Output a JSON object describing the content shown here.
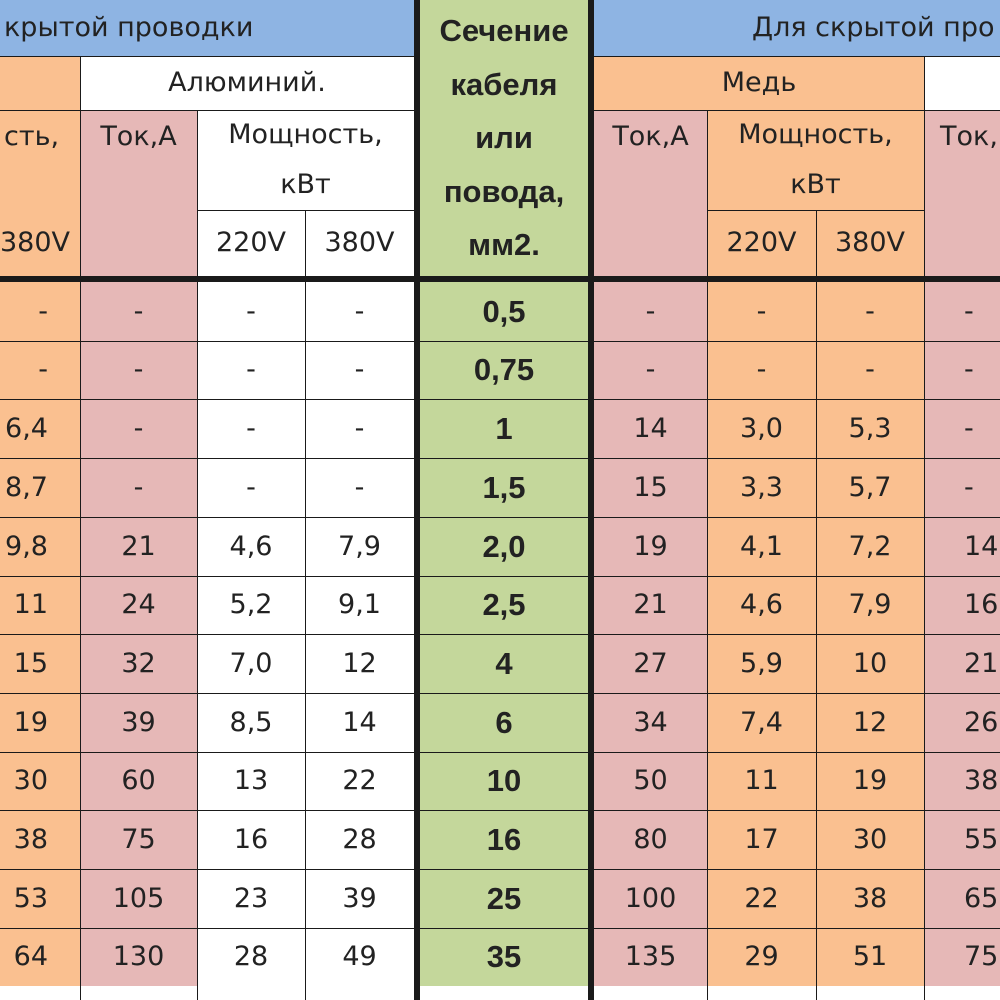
{
  "header": {
    "left_group": "крытой проводки",
    "right_group": "Для скрытой про",
    "aluminum": "Алюминий.",
    "copper": "Медь",
    "current_left": "Ток,А",
    "current_right": "Ток,А",
    "current_far_right": "Ток,",
    "power_partial": "сть,",
    "power_left": "Мощность, кВт",
    "power_right": "Мощность, кВт",
    "v380_partial": "380V",
    "v220_left": "220V",
    "v380_left": "380V",
    "v220_right": "220V",
    "v380_right": "380V",
    "section": "Сечение кабеля или повода, мм2."
  },
  "rows": [
    [
      "-",
      "-",
      "-",
      "-",
      "0,5",
      "-",
      "-",
      "-",
      "-"
    ],
    [
      "-",
      "-",
      "-",
      "-",
      "0,75",
      "-",
      "-",
      "-",
      "-"
    ],
    [
      "6,4",
      "-",
      "-",
      "-",
      "1",
      "14",
      "3,0",
      "5,3",
      "-"
    ],
    [
      "8,7",
      "-",
      "-",
      "-",
      "1,5",
      "15",
      "3,3",
      "5,7",
      "-"
    ],
    [
      "9,8",
      "21",
      "4,6",
      "7,9",
      "2,0",
      "19",
      "4,1",
      "7,2",
      "14"
    ],
    [
      "11",
      "24",
      "5,2",
      "9,1",
      "2,5",
      "21",
      "4,6",
      "7,9",
      "16"
    ],
    [
      "15",
      "32",
      "7,0",
      "12",
      "4",
      "27",
      "5,9",
      "10",
      "21"
    ],
    [
      "19",
      "39",
      "8,5",
      "14",
      "6",
      "34",
      "7,4",
      "12",
      "26"
    ],
    [
      "30",
      "60",
      "13",
      "22",
      "10",
      "50",
      "11",
      "19",
      "38"
    ],
    [
      "38",
      "75",
      "16",
      "28",
      "16",
      "80",
      "17",
      "30",
      "55"
    ],
    [
      "53",
      "105",
      "23",
      "39",
      "25",
      "100",
      "22",
      "38",
      "65"
    ],
    [
      "64",
      "130",
      "28",
      "49",
      "35",
      "135",
      "29",
      "51",
      "75"
    ]
  ]
}
